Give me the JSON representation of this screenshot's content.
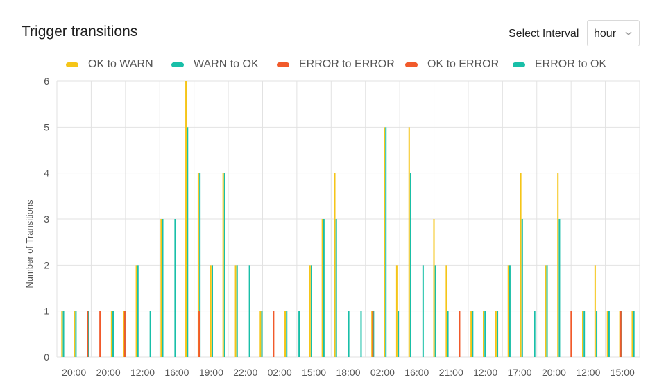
{
  "header": {
    "title": "Trigger transitions",
    "interval_label": "Select Interval",
    "interval_value": "hour",
    "caret_icon": "chevron-down-icon"
  },
  "colors": {
    "ok_to_warn": "#f5c518",
    "warn_to_ok": "#19bfa8",
    "error_to_error": "#f15a2b",
    "ok_to_error": "#f15a2b",
    "error_to_ok": "#19bfa8",
    "grid": "#e2e2e2"
  },
  "chart_data": {
    "type": "bar",
    "title": "Trigger transitions",
    "ylabel": "Number of Transitions",
    "xlabel": "",
    "ylim": [
      0,
      6
    ],
    "yticks": [
      0,
      1,
      2,
      3,
      4,
      5,
      6
    ],
    "grid": true,
    "legend_position": "top",
    "x_tick_labels": [
      "20:00",
      "20:00",
      "12:00",
      "16:00",
      "19:00",
      "22:00",
      "02:00",
      "15:00",
      "18:00",
      "02:00",
      "16:00",
      "21:00",
      "12:00",
      "17:00",
      "20:00",
      "12:00",
      "15:00"
    ],
    "series": [
      {
        "name": "OK to WARN",
        "color": "#f5c518",
        "values": [
          1,
          1,
          0,
          0,
          1,
          1,
          2,
          0,
          3,
          0,
          6,
          4,
          2,
          4,
          2,
          0,
          1,
          0,
          1,
          0,
          2,
          3,
          4,
          0,
          0,
          1,
          5,
          2,
          5,
          0,
          3,
          2,
          0,
          1,
          1,
          1,
          2,
          4,
          0,
          2,
          4,
          0,
          1,
          2,
          1,
          1,
          1
        ]
      },
      {
        "name": "WARN to OK",
        "color": "#19bfa8",
        "values": [
          1,
          1,
          1,
          0,
          1,
          1,
          2,
          1,
          3,
          3,
          5,
          4,
          2,
          4,
          2,
          2,
          1,
          0,
          1,
          1,
          2,
          3,
          3,
          1,
          1,
          1,
          5,
          1,
          4,
          2,
          2,
          1,
          0,
          1,
          1,
          1,
          2,
          3,
          1,
          2,
          3,
          0,
          1,
          1,
          1,
          1,
          1
        ]
      },
      {
        "name": "ERROR to ERROR",
        "color": "#f15a2b",
        "values": [
          0,
          0,
          0,
          0,
          0,
          0,
          0,
          0,
          0,
          0,
          0,
          0,
          0,
          0,
          0,
          0,
          0,
          0,
          0,
          0,
          0,
          0,
          0,
          0,
          0,
          0,
          0,
          0,
          0,
          0,
          0,
          0,
          0,
          0,
          0,
          0,
          0,
          0,
          0,
          0,
          0,
          0,
          0,
          0,
          0,
          0,
          0
        ]
      },
      {
        "name": "OK to ERROR",
        "color": "#f15a2b",
        "values": [
          0,
          0,
          1,
          1,
          0,
          1,
          0,
          0,
          0,
          0,
          0,
          1,
          0,
          0,
          0,
          0,
          0,
          1,
          0,
          0,
          0,
          0,
          0,
          0,
          0,
          1,
          0,
          0,
          0,
          0,
          0,
          0,
          1,
          0,
          0,
          0,
          0,
          0,
          0,
          0,
          0,
          1,
          0,
          0,
          0,
          1,
          0
        ]
      },
      {
        "name": "ERROR to OK",
        "color": "#19bfa8",
        "values": [
          0,
          0,
          0,
          0,
          0,
          0,
          0,
          0,
          0,
          0,
          0,
          0,
          0,
          0,
          0,
          0,
          0,
          0,
          0,
          0,
          0,
          0,
          0,
          0,
          0,
          0,
          0,
          0,
          0,
          0,
          0,
          0,
          0,
          0,
          0,
          0,
          0,
          0,
          0,
          0,
          0,
          0,
          0,
          0,
          0,
          0,
          0
        ]
      }
    ]
  }
}
